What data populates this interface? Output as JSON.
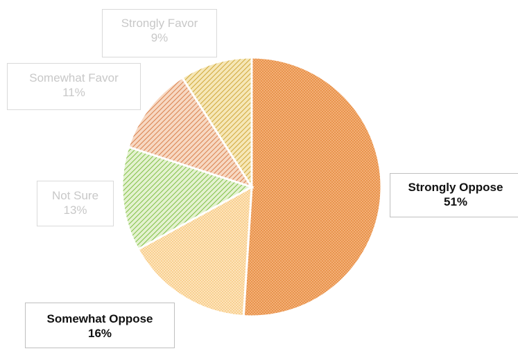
{
  "chart_data": {
    "type": "pie",
    "title": "",
    "slices": [
      {
        "label": "Strongly Oppose",
        "value": 51,
        "value_label": "51%",
        "color": "#f0a15c",
        "pattern": "dots"
      },
      {
        "label": "Somewhat Oppose",
        "value": 16,
        "value_label": "16%",
        "color": "#f7c77c",
        "pattern": "fine-dots"
      },
      {
        "label": "Not Sure",
        "value": 13,
        "value_label": "13%",
        "color": "#a3d06e",
        "pattern": "diagonal"
      },
      {
        "label": "Somewhat Favor",
        "value": 11,
        "value_label": "11%",
        "color": "#e8956a",
        "pattern": "diagonal"
      },
      {
        "label": "Strongly Favor",
        "value": 9,
        "value_label": "9%",
        "color": "#e6c35a",
        "pattern": "diagonal"
      }
    ],
    "start_angle": "12 o'clock",
    "direction": "clockwise",
    "legend": "none",
    "data_labels": "callout boxes"
  }
}
